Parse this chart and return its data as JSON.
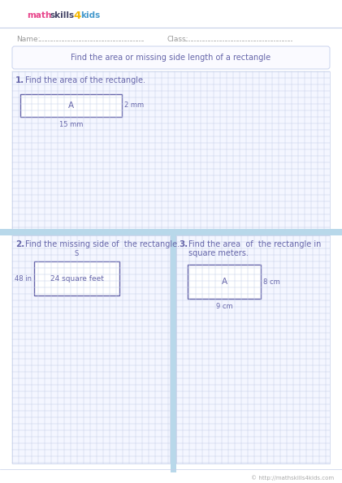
{
  "title": "Find the area or missing side length of a rectangle",
  "name_label": "Name:",
  "class_label": "Class:",
  "q1_label": "1.",
  "q1_text": "Find the area of the rectangle.",
  "q1_rect_label": "A",
  "q1_side1": "2 mm",
  "q1_side2": "15 mm",
  "q2_label": "2.",
  "q2_text": "Find the missing side of  the rectangle.",
  "q2_rect_label": "24 square feet",
  "q2_side1": "48 in",
  "q2_side2": "S",
  "q3_label": "3.",
  "q3_text_line1": "Find the area  of  the rectangle in",
  "q3_text_line2": "square meters.",
  "q3_rect_label": "A",
  "q3_side1": "8 cm",
  "q3_side2": "9 cm",
  "footer": "© http://mathskills4kids.com",
  "grid_color": "#c5cfe8",
  "rect_border_color": "#6666aa",
  "text_color": "#6666aa",
  "bg_color": "#ffffff",
  "divider_color": "#b8d8ea",
  "section_divider_color": "#b8d8ea",
  "logo_math_color": "#e8468c",
  "logo_skills_color": "#444466",
  "logo_4_color": "#f5b800",
  "logo_kids_color": "#4499cc",
  "grid_cell": 8
}
